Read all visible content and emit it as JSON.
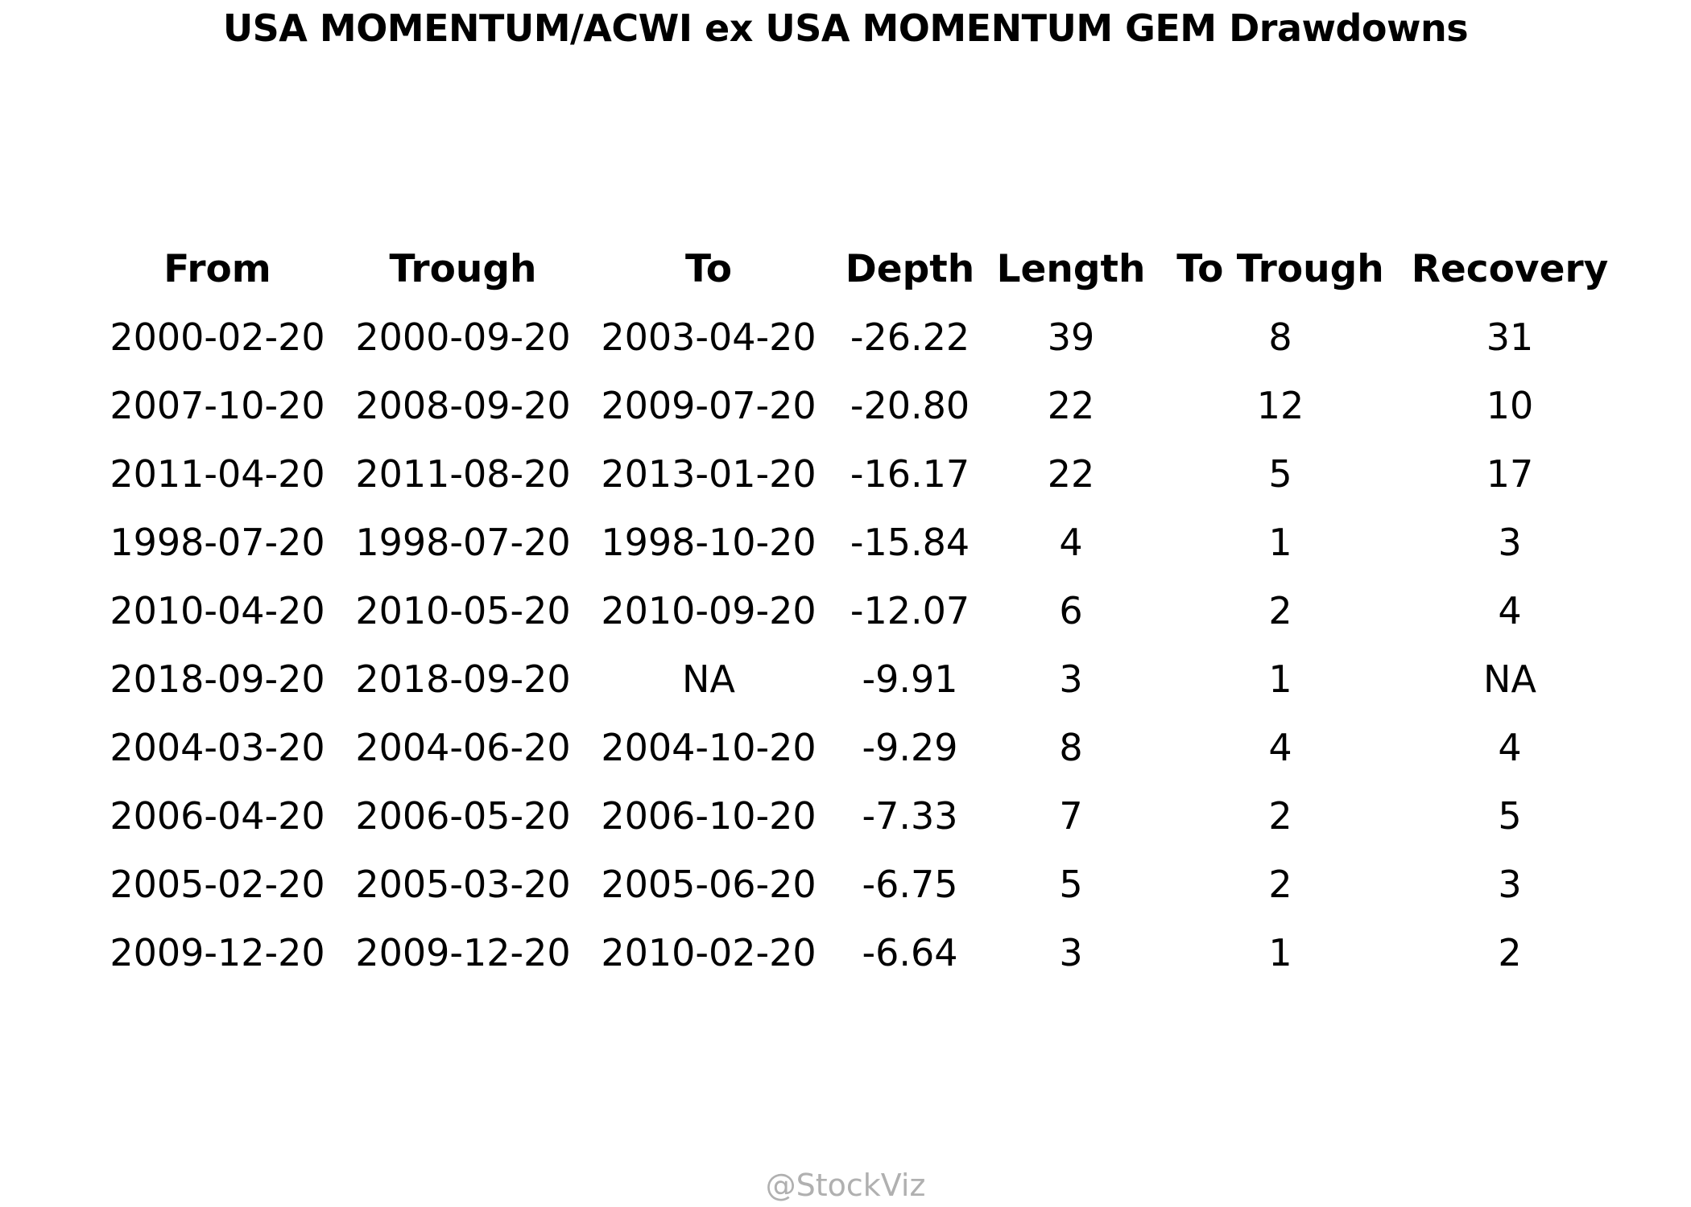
{
  "chart_data": {
    "type": "table",
    "title": "USA MOMENTUM/ACWI ex USA MOMENTUM GEM Drawdowns",
    "columns": [
      "From",
      "Trough",
      "To",
      "Depth",
      "Length",
      "To Trough",
      "Recovery"
    ],
    "rows": [
      [
        "2000-02-20",
        "2000-09-20",
        "2003-04-20",
        "-26.22",
        "39",
        "8",
        "31"
      ],
      [
        "2007-10-20",
        "2008-09-20",
        "2009-07-20",
        "-20.80",
        "22",
        "12",
        "10"
      ],
      [
        "2011-04-20",
        "2011-08-20",
        "2013-01-20",
        "-16.17",
        "22",
        "5",
        "17"
      ],
      [
        "1998-07-20",
        "1998-07-20",
        "1998-10-20",
        "-15.84",
        "4",
        "1",
        "3"
      ],
      [
        "2010-04-20",
        "2010-05-20",
        "2010-09-20",
        "-12.07",
        "6",
        "2",
        "4"
      ],
      [
        "2018-09-20",
        "2018-09-20",
        "NA",
        "-9.91",
        "3",
        "1",
        "NA"
      ],
      [
        "2004-03-20",
        "2004-06-20",
        "2004-10-20",
        "-9.29",
        "8",
        "4",
        "4"
      ],
      [
        "2006-04-20",
        "2006-05-20",
        "2006-10-20",
        "-7.33",
        "7",
        "2",
        "5"
      ],
      [
        "2005-02-20",
        "2005-03-20",
        "2005-06-20",
        "-6.75",
        "5",
        "2",
        "3"
      ],
      [
        "2009-12-20",
        "2009-12-20",
        "2010-02-20",
        "-6.64",
        "3",
        "1",
        "2"
      ]
    ]
  },
  "watermark": "@StockViz"
}
